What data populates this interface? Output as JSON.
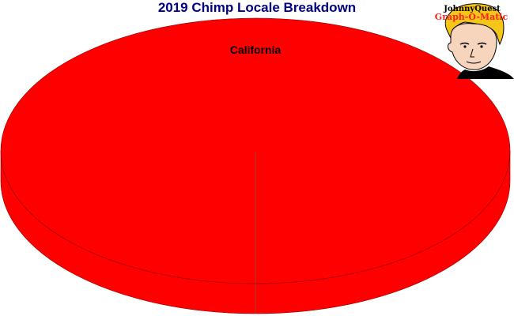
{
  "chart_data": {
    "type": "pie",
    "title": "2019 Chimp Locale Breakdown",
    "slices": [
      {
        "label": "California",
        "value": 100,
        "color": "#ff0000"
      }
    ],
    "style": "3d"
  },
  "logo": {
    "line1": "JohnnyQuest",
    "line2": "Graph-O-Matic"
  }
}
